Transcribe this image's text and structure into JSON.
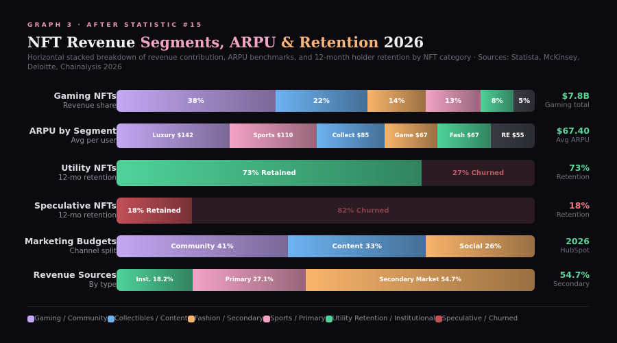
{
  "header": {
    "eyebrow": "GRAPH 3 · AFTER STATISTIC #15",
    "title_part1": "NFT Revenue ",
    "title_part2": "Segments, ARPU",
    "title_part3": " & ",
    "title_part4": "Retention",
    "title_part5": " 2026",
    "subtitle": "Horizontal stacked breakdown of revenue contribution, ARPU benchmarks, and 12-month holder retention by NFT category · Sources: Statista, McKinsey, Deloitte, Chainalysis 2026"
  },
  "colors": {
    "gaming": "#c4a8f4",
    "collectibles": "#6db3f2",
    "fashion": "#f8b46b",
    "sports": "#f4a3c6",
    "utility": "#4fd39a",
    "speculative": "#c24f58",
    "summary_green": "#5fd49a",
    "summary_red": "#f07b86"
  },
  "chart_data": {
    "type": "bar",
    "stacked": true,
    "orientation": "horizontal",
    "rows": [
      {
        "label": "Gaming NFTs",
        "sublabel": "Revenue share",
        "summary_value": "$7.8B",
        "summary_caption": "Gaming total",
        "summary_color": "summary_green",
        "segments": [
          {
            "label": "38%",
            "value": 38,
            "color": "gaming"
          },
          {
            "label": "22%",
            "value": 22,
            "color": "collectibles"
          },
          {
            "label": "14%",
            "value": 14,
            "color": "fashion"
          },
          {
            "label": "13%",
            "value": 13,
            "color": "sports"
          },
          {
            "label": "8%",
            "value": 8,
            "color": "utility"
          },
          {
            "label": "5%",
            "value": 5,
            "color": "neutral"
          }
        ]
      },
      {
        "label": "ARPU by Segment",
        "sublabel": "Avg per user",
        "summary_value": "$67.40",
        "summary_caption": "Avg ARPU",
        "summary_color": "summary_green",
        "small_text": true,
        "segments": [
          {
            "label": "Luxury $142",
            "value": 142,
            "color": "gaming"
          },
          {
            "label": "Sports $110",
            "value": 110,
            "color": "sports"
          },
          {
            "label": "Collect $85",
            "value": 85,
            "color": "collectibles"
          },
          {
            "label": "Game $67",
            "value": 67,
            "color": "fashion"
          },
          {
            "label": "Fash $67",
            "value": 67,
            "color": "utility"
          },
          {
            "label": "RE $55",
            "value": 55,
            "color": "neutral"
          }
        ]
      },
      {
        "label": "Utility NFTs",
        "sublabel": "12-mo retention",
        "summary_value": "73%",
        "summary_caption": "Retention",
        "summary_color": "summary_green",
        "segments": [
          {
            "label": "73% Retained",
            "value": 73,
            "color": "utility"
          },
          {
            "label": "27% Churned",
            "value": 27,
            "color": "churn"
          }
        ]
      },
      {
        "label": "Speculative NFTs",
        "sublabel": "12-mo retention",
        "summary_value": "18%",
        "summary_caption": "Retention",
        "summary_color": "summary_red",
        "segments": [
          {
            "label": "18% Retained",
            "value": 18,
            "color": "speculative"
          },
          {
            "label": "82% Churned",
            "value": 82,
            "color": "churn"
          }
        ]
      },
      {
        "label": "Marketing Budgets",
        "sublabel": "Channel split",
        "summary_value": "2026",
        "summary_caption": "HubSpot",
        "summary_color": "summary_green",
        "segments": [
          {
            "label": "Community 41%",
            "value": 41,
            "color": "gaming"
          },
          {
            "label": "Content 33%",
            "value": 33,
            "color": "collectibles"
          },
          {
            "label": "Social 26%",
            "value": 26,
            "color": "fashion"
          }
        ]
      },
      {
        "label": "Revenue Sources",
        "sublabel": "By type",
        "summary_value": "54.7%",
        "summary_caption": "Secondary",
        "summary_color": "summary_green",
        "small_text": true,
        "segments": [
          {
            "label": "Inst. 18.2%",
            "value": 18.2,
            "color": "utility"
          },
          {
            "label": "Primary 27.1%",
            "value": 27.1,
            "color": "sports"
          },
          {
            "label": "Secondary Market 54.7%",
            "value": 54.7,
            "color": "fashion"
          }
        ]
      }
    ]
  },
  "legend": [
    {
      "label": "Gaming / Community",
      "color": "gaming"
    },
    {
      "label": "Collectibles / Content",
      "color": "collectibles"
    },
    {
      "label": "Fashion / Secondary",
      "color": "fashion"
    },
    {
      "label": "Sports / Primary",
      "color": "sports"
    },
    {
      "label": "Utility Retention / Institutional",
      "color": "utility"
    },
    {
      "label": "Speculative / Churned",
      "color": "speculative"
    }
  ]
}
